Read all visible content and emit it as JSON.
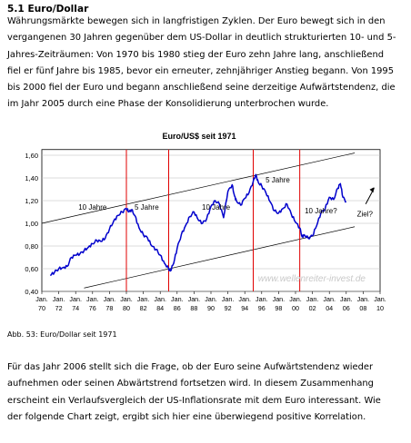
{
  "section": {
    "title": "5.1 Euro/Dollar"
  },
  "paragraph1": [
    "Währungsmärkte bewegen sich in langfristigen Zyklen. Der Euro bewegt sich in den",
    "vergangenen 30 Jahren gegenüber dem US-Dollar in deutlich strukturierten 10- und 5-",
    "Jahres-Zeiträumen: Von 1970 bis 1980 stieg der Euro zehn Jahre lang, anschließend",
    "fiel er fünf Jahre bis 1985, bevor ein erneuter, zehnjähriger Anstieg begann. Von 1995",
    "bis 2000 fiel der Euro und begann anschließend seine derzeitige Aufwärtstendenz, die",
    "im Jahr 2005 durch eine Phase der Konsolidierung unterbrochen wurde."
  ],
  "caption": "Abb. 53: Euro/Dollar seit 1971",
  "paragraph2": [
    "Für das Jahr 2006 stellt sich die Frage, ob der Euro seine Aufwärtstendenz wieder",
    "aufnehmen oder seinen Abwärtstrend fortsetzen wird. In diesem Zusammenhang",
    "erscheint ein Verlaufsvergleich der US-Inflationsrate mit dem Euro interessant. Wie",
    "der folgende Chart zeigt, ergibt sich hier eine überwiegend positive Korrelation."
  ],
  "chart_data": {
    "type": "line",
    "title": "Euro/US$ seit 1971",
    "xlabel": "",
    "ylabel": "",
    "xlim": [
      1970,
      2010
    ],
    "ylim": [
      0.4,
      1.65
    ],
    "grid": true,
    "y_ticks": [
      "0,40",
      "0,60",
      "0,80",
      "1,00",
      "1,20",
      "1,40",
      "1,60"
    ],
    "y_tick_values": [
      0.4,
      0.6,
      0.8,
      1.0,
      1.2,
      1.4,
      1.6
    ],
    "x_tick_labels": [
      "Jan. 70",
      "Jan. 72",
      "Jan. 74",
      "Jan. 76",
      "Jan. 78",
      "Jan. 80",
      "Jan. 82",
      "Jan. 84",
      "Jan. 86",
      "Jan. 88",
      "Jan. 90",
      "Jan. 92",
      "Jan. 94",
      "Jan. 96",
      "Jan. 98",
      "Jan. 00",
      "Jan. 02",
      "Jan. 04",
      "Jan. 06",
      "Jan. 08",
      "Jan. 10"
    ],
    "x_tick_values": [
      1970,
      1972,
      1974,
      1976,
      1978,
      1980,
      1982,
      1984,
      1986,
      1988,
      1990,
      1992,
      1994,
      1996,
      1998,
      2000,
      2002,
      2004,
      2006,
      2008,
      2010
    ],
    "series": [
      {
        "name": "",
        "color": "#0000cc",
        "x": [
          1971.0,
          1971.5,
          1972.0,
          1972.5,
          1973.0,
          1973.5,
          1974.0,
          1974.5,
          1975.0,
          1975.5,
          1976.0,
          1976.5,
          1977.0,
          1977.5,
          1978.0,
          1978.5,
          1979.0,
          1979.5,
          1980.0,
          1980.3,
          1980.6,
          1981.0,
          1981.5,
          1982.0,
          1982.5,
          1983.0,
          1983.5,
          1984.0,
          1984.5,
          1985.0,
          1985.2,
          1985.6,
          1986.0,
          1986.5,
          1987.0,
          1987.5,
          1988.0,
          1988.5,
          1989.0,
          1989.5,
          1990.0,
          1990.5,
          1991.0,
          1991.5,
          1992.0,
          1992.5,
          1992.8,
          1993.0,
          1993.5,
          1994.0,
          1994.5,
          1995.0,
          1995.3,
          1995.6,
          1996.0,
          1996.5,
          1997.0,
          1997.5,
          1998.0,
          1998.5,
          1999.0,
          1999.5,
          2000.0,
          2000.5,
          2000.8,
          2001.0,
          2001.5,
          2002.0,
          2002.5,
          2003.0,
          2003.5,
          2004.0,
          2004.5,
          2005.0,
          2005.3,
          2005.6,
          2006.0
        ],
        "y": [
          0.54,
          0.57,
          0.6,
          0.61,
          0.62,
          0.7,
          0.72,
          0.73,
          0.76,
          0.79,
          0.82,
          0.85,
          0.84,
          0.87,
          0.95,
          1.02,
          1.07,
          1.1,
          1.13,
          1.1,
          1.12,
          1.07,
          0.96,
          0.9,
          0.87,
          0.8,
          0.77,
          0.72,
          0.65,
          0.6,
          0.58,
          0.65,
          0.78,
          0.9,
          0.98,
          1.06,
          1.1,
          1.03,
          1.0,
          1.04,
          1.15,
          1.2,
          1.17,
          1.05,
          1.28,
          1.34,
          1.24,
          1.2,
          1.16,
          1.22,
          1.27,
          1.37,
          1.43,
          1.36,
          1.33,
          1.27,
          1.19,
          1.11,
          1.09,
          1.13,
          1.17,
          1.08,
          1.01,
          0.96,
          0.88,
          0.9,
          0.87,
          0.89,
          0.98,
          1.09,
          1.13,
          1.23,
          1.21,
          1.31,
          1.35,
          1.23,
          1.19
        ]
      }
    ],
    "channel_upper": {
      "x": [
        1970,
        2007
      ],
      "y": [
        1.0,
        1.62
      ]
    },
    "channel_lower": {
      "x": [
        1975,
        2007
      ],
      "y": [
        0.43,
        0.97
      ]
    },
    "cycle_lines_x": [
      1980,
      1985,
      1995,
      2000.5
    ],
    "annotations": [
      {
        "text": "10 Jahre",
        "x": 1976,
        "y": 1.12
      },
      {
        "text": "5 Jahre",
        "x": 1982.4,
        "y": 1.12
      },
      {
        "text": "10 Jahre",
        "x": 1990.6,
        "y": 1.12
      },
      {
        "text": "5 Jahre",
        "x": 1997.9,
        "y": 1.36
      },
      {
        "text": "10 Jahre?",
        "x": 2003,
        "y": 1.09
      },
      {
        "text": "Ziel?",
        "x": 2008.2,
        "y": 1.06
      }
    ],
    "watermark": "www.wellenreiter-invest.de"
  }
}
